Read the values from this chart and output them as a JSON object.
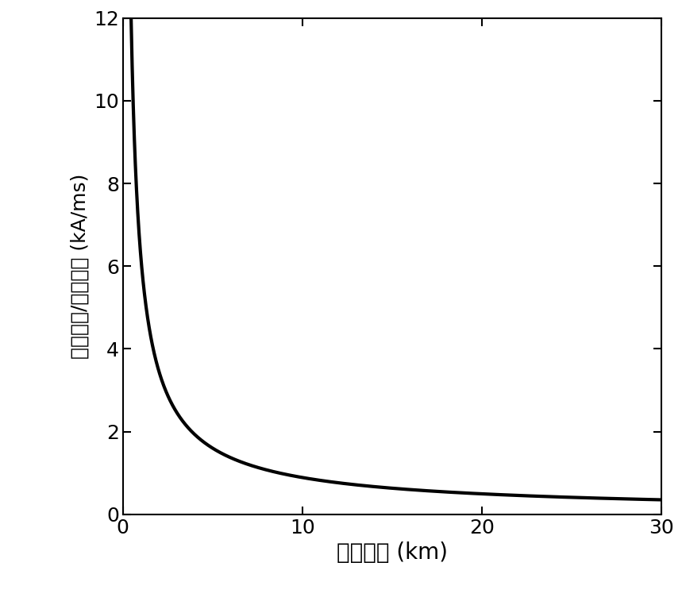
{
  "xlabel": "故障位置 (km)",
  "ylabel": "电流峰値/到达时间 (kA/ms)",
  "xlim": [
    0,
    30
  ],
  "ylim": [
    0,
    12
  ],
  "xticks": [
    0,
    10,
    20,
    30
  ],
  "yticks": [
    0,
    2,
    4,
    6,
    8,
    10,
    12
  ],
  "line_color": "#000000",
  "line_width": 3.0,
  "background_color": "#ffffff",
  "x_start": 0.45,
  "x_end": 30,
  "curve_A": 5.5,
  "curve_n": 1.0,
  "num_points": 2000,
  "xlabel_fontsize": 20,
  "ylabel_fontsize": 18,
  "tick_fontsize": 18,
  "fig_width": 8.59,
  "fig_height": 7.62,
  "dpi": 100
}
